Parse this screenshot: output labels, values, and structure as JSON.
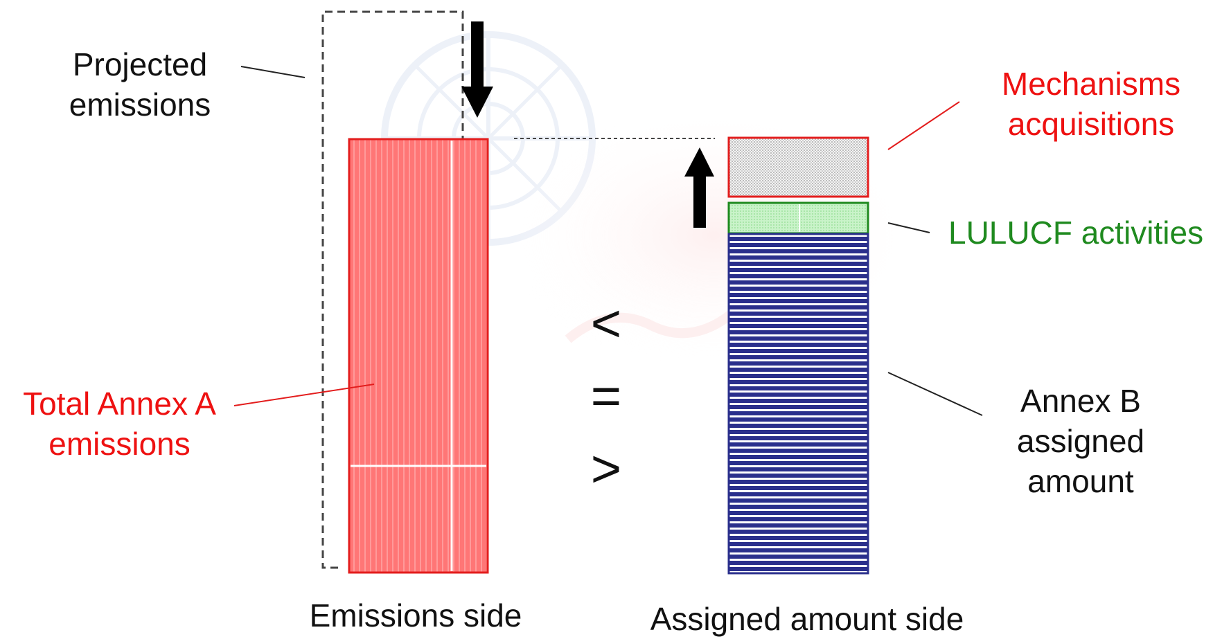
{
  "colors": {
    "emissions_fill": "#ff7676",
    "emissions_border": "#e31d1d",
    "assigned_fill": "#2a2f8c",
    "lulucf_fill": "#c8f2c8",
    "lulucf_border": "#1f8a1f",
    "mechanisms_fill": "#d9d9d9",
    "mechanisms_border": "#e31d1d",
    "red_text": "#ee1111",
    "green_text": "#1f8a1f",
    "black_text": "#111111",
    "watermark_blue": "#dfe6f4",
    "watermark_pink": "#fde3e3"
  },
  "labels": {
    "projected_line1": "Projected",
    "projected_line2": "emissions",
    "total_line1": "Total Annex A",
    "total_line2": "emissions",
    "mechanisms_line1": "Mechanisms",
    "mechanisms_line2": "acquisitions",
    "lulucf": "LULUCF activities",
    "annexb_line1": "Annex B",
    "annexb_line2": "assigned",
    "annexb_line3": "amount",
    "emissions_side": "Emissions side",
    "assigned_side": "Assigned amount side"
  },
  "symbols": {
    "less": "<",
    "equal": "=",
    "greater": ">"
  },
  "icons": {
    "down_arrow": "down-arrow-icon",
    "up_arrow": "up-arrow-icon",
    "watermark": "un-emblem-watermark"
  }
}
